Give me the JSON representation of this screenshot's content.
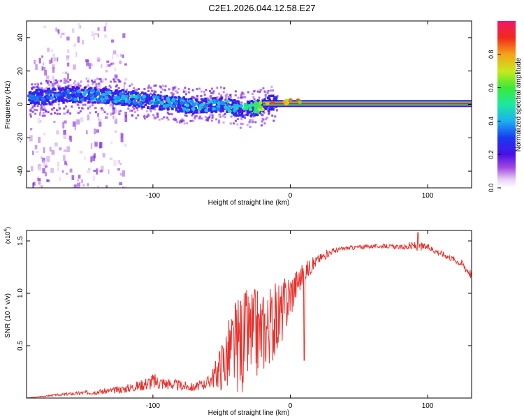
{
  "figure_title": "C2E1.2026.044.12.58.E27",
  "colors": {
    "snr_line": "#e8312c",
    "axis": "#000000",
    "background": "#ffffff"
  },
  "chart_data": [
    {
      "type": "heatmap",
      "title": "C2E1.2026.044.12.58.E27",
      "xlabel": "Height of straight line (km)",
      "ylabel": "Frequency (Hz)",
      "xlim": [
        -192,
        132
      ],
      "ylim": [
        -50,
        50
      ],
      "x_ticks": [
        -100,
        0,
        100
      ],
      "x_tick_labels": [
        "-100",
        "0",
        "100"
      ],
      "y_ticks": [
        -40,
        -20,
        0,
        20,
        40
      ],
      "y_tick_labels": [
        "-40",
        "-20",
        "0",
        "20",
        "40"
      ],
      "colorbar": {
        "label": "Normalized spectral amplitude",
        "range": [
          0,
          1
        ],
        "ticks": [
          0.0,
          0.2,
          0.4,
          0.6,
          0.8
        ],
        "tick_labels": [
          "0.0",
          "0.2",
          "0.4",
          "0.6",
          "0.8"
        ]
      },
      "ridge": {
        "description_points_x_km": [
          -190,
          -160,
          -130,
          -100,
          -70,
          -50,
          -35,
          -25,
          -15,
          -5,
          0,
          10,
          50,
          100,
          132
        ],
        "center_hz": [
          4,
          6,
          5,
          2,
          -1,
          0,
          -3,
          -2,
          1,
          1,
          2,
          0.5,
          0.5,
          0.5,
          0.5
        ],
        "amplitude": [
          0.3,
          0.35,
          0.4,
          0.4,
          0.4,
          0.4,
          0.45,
          0.55,
          0.8,
          0.85,
          0.8,
          0.9,
          0.9,
          0.9,
          0.9
        ]
      }
    },
    {
      "type": "line",
      "title": "",
      "xlabel": "Height of straight line (km)",
      "ylabel": "SNR (10 * v/v)",
      "y_multiplier_label": "(x10",
      "y_multiplier_exp": "4",
      "y_multiplier_close": ")",
      "xlim": [
        -192,
        132
      ],
      "ylim": [
        0,
        1.6
      ],
      "x_ticks": [
        -100,
        0,
        100
      ],
      "x_tick_labels": [
        "-100",
        "0",
        "100"
      ],
      "y_ticks": [
        0.5,
        1.0,
        1.5
      ],
      "y_tick_labels": [
        "0.5",
        "1.0",
        "1.5"
      ],
      "series": [
        {
          "name": "SNR",
          "x": [
            -192,
            -170,
            -150,
            -130,
            -120,
            -110,
            -100,
            -90,
            -80,
            -70,
            -60,
            -55,
            -50,
            -45,
            -40,
            -35,
            -30,
            -25,
            -20,
            -15,
            -10,
            -5,
            0,
            5,
            10,
            20,
            30,
            40,
            50,
            60,
            70,
            80,
            90,
            100,
            110,
            120,
            125,
            132
          ],
          "y": [
            0.0,
            0.03,
            0.05,
            0.07,
            0.09,
            0.12,
            0.16,
            0.14,
            0.12,
            0.1,
            0.15,
            0.22,
            0.32,
            0.42,
            0.5,
            0.55,
            0.6,
            0.62,
            0.65,
            0.7,
            0.75,
            0.85,
            1.0,
            1.1,
            1.2,
            1.32,
            1.4,
            1.43,
            1.44,
            1.45,
            1.45,
            1.44,
            1.45,
            1.44,
            1.38,
            1.32,
            1.28,
            1.18
          ],
          "noise": [
            0.0,
            0.01,
            0.02,
            0.03,
            0.04,
            0.05,
            0.08,
            0.06,
            0.05,
            0.04,
            0.06,
            0.12,
            0.25,
            0.35,
            0.45,
            0.5,
            0.45,
            0.45,
            0.4,
            0.38,
            0.35,
            0.3,
            0.25,
            0.15,
            0.1,
            0.05,
            0.03,
            0.02,
            0.02,
            0.02,
            0.02,
            0.02,
            0.05,
            0.03,
            0.03,
            0.03,
            0.04,
            0.05
          ]
        }
      ],
      "annotations": [
        {
          "x": 10,
          "y": 0.36,
          "note": "spike down"
        },
        {
          "x": 93,
          "y": 1.58,
          "note": "peak"
        }
      ]
    }
  ]
}
